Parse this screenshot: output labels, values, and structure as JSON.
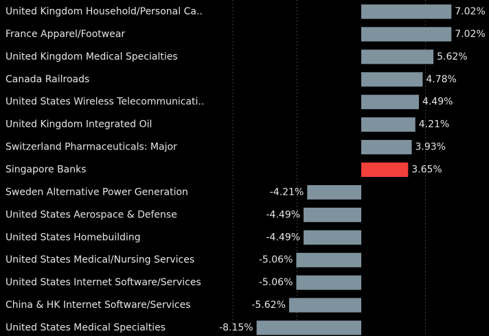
{
  "chart_data": {
    "type": "barh",
    "categories": [
      "United Kingdom Household/Personal Ca..",
      "France Apparel/Footwear",
      "United Kingdom Medical Specialties",
      "Canada Railroads",
      "United States Wireless Telecommunicati..",
      "United Kingdom Integrated Oil",
      "Switzerland Pharmaceuticals: Major",
      "Singapore Banks",
      "Sweden Alternative Power Generation",
      "United States Aerospace & Defense",
      "United States Homebuilding",
      "United States Medical/Nursing Services",
      "United States Internet Software/Services",
      "China & HK Internet Software/Services",
      "United States Medical Specialties"
    ],
    "values": [
      7.02,
      7.02,
      5.62,
      4.78,
      4.49,
      4.21,
      3.93,
      3.65,
      -4.21,
      -4.49,
      -4.49,
      -5.06,
      -5.06,
      -5.62,
      -8.15
    ],
    "value_labels": [
      "7.02%",
      "7.02%",
      "5.62%",
      "4.78%",
      "4.49%",
      "4.21%",
      "3.93%",
      "3.65%",
      "-4.21%",
      "-4.49%",
      "-4.49%",
      "-5.06%",
      "-5.06%",
      "-5.62%",
      "-8.15%"
    ],
    "colors": [
      "#7f939e",
      "#7f939e",
      "#7f939e",
      "#7f939e",
      "#7f939e",
      "#7f939e",
      "#7f939e",
      "#f2413a",
      "#7f939e",
      "#7f939e",
      "#7f939e",
      "#7f939e",
      "#7f939e",
      "#7f939e",
      "#7f939e"
    ],
    "xlim": [
      -10,
      10
    ],
    "xticks": [
      -10,
      -5,
      5,
      10
    ],
    "grid": true
  }
}
